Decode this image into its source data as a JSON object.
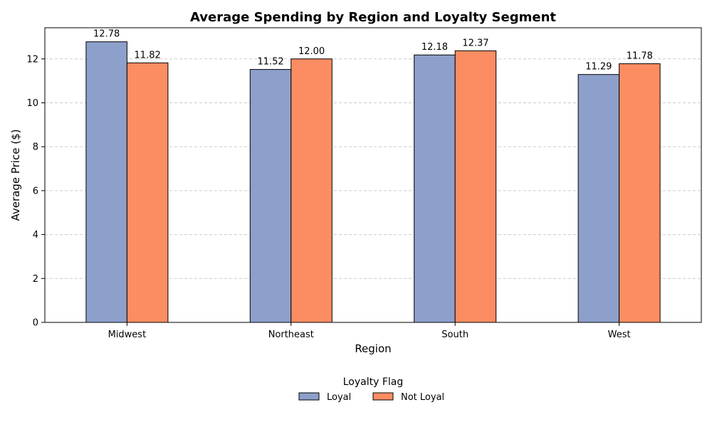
{
  "chart_data": {
    "type": "bar",
    "title": "Average Spending by Region and Loyalty Segment",
    "xlabel": "Region",
    "ylabel": "Average Price ($)",
    "categories": [
      "Midwest",
      "Northeast",
      "South",
      "West"
    ],
    "series": [
      {
        "name": "Loyal",
        "color": "#8da0cb",
        "values": [
          12.78,
          11.52,
          12.18,
          11.29
        ],
        "labels": [
          "12.78",
          "11.52",
          "12.18",
          "11.29"
        ]
      },
      {
        "name": "Not Loyal",
        "color": "#fc8d62",
        "values": [
          11.82,
          12.0,
          12.37,
          11.78
        ],
        "labels": [
          "11.82",
          "12.00",
          "12.37",
          "11.78"
        ]
      }
    ],
    "ylim": [
      0,
      13.419
    ],
    "yticks": [
      0,
      2,
      4,
      6,
      8,
      10,
      12
    ],
    "ytick_labels": [
      "0",
      "2",
      "4",
      "6",
      "8",
      "10",
      "12"
    ],
    "grid": "y, dashed",
    "legend": {
      "title": "Loyalty Flag",
      "placement": "bottom-center"
    }
  }
}
